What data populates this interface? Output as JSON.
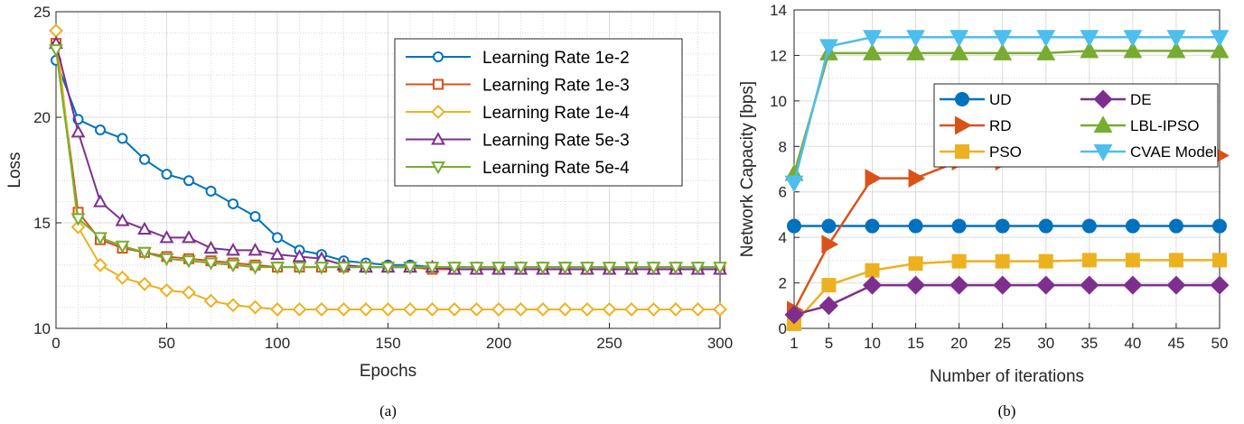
{
  "chart_data": [
    {
      "type": "line",
      "caption": "(a)",
      "xlabel": "Epochs",
      "ylabel": "Loss",
      "xlim": [
        0,
        300
      ],
      "ylim": [
        10,
        25
      ],
      "xticks": [
        0,
        50,
        100,
        150,
        200,
        250,
        300
      ],
      "yticks": [
        10,
        15,
        20,
        25
      ],
      "grid": true,
      "legend_position": "top-right",
      "x": [
        0,
        10,
        20,
        30,
        40,
        50,
        60,
        70,
        80,
        90,
        100,
        110,
        120,
        130,
        140,
        150,
        160,
        170,
        180,
        190,
        200,
        210,
        220,
        230,
        240,
        250,
        260,
        270,
        280,
        290,
        300
      ],
      "series": [
        {
          "name": "Learning Rate 1e-2",
          "color": "#0072BD",
          "marker": "circle",
          "values": [
            22.7,
            19.9,
            19.4,
            19.0,
            18.0,
            17.3,
            17.0,
            16.5,
            15.9,
            15.3,
            14.3,
            13.7,
            13.5,
            13.2,
            13.1,
            13.0,
            13.0,
            12.9,
            12.9,
            12.9,
            12.9,
            12.9,
            12.9,
            12.9,
            12.9,
            12.9,
            12.9,
            12.9,
            12.9,
            12.9,
            12.9
          ]
        },
        {
          "name": "Learning Rate 1e-3",
          "color": "#D95319",
          "marker": "square",
          "values": [
            23.5,
            15.5,
            14.2,
            13.8,
            13.6,
            13.4,
            13.3,
            13.2,
            13.1,
            13.0,
            12.9,
            12.9,
            12.9,
            12.9,
            12.9,
            12.9,
            12.9,
            12.8,
            12.8,
            12.8,
            12.8,
            12.8,
            12.8,
            12.8,
            12.8,
            12.8,
            12.8,
            12.8,
            12.8,
            12.8,
            12.8
          ]
        },
        {
          "name": "Learning Rate 1e-4",
          "color": "#EDB120",
          "marker": "diamond",
          "values": [
            24.1,
            14.8,
            13.0,
            12.4,
            12.1,
            11.8,
            11.7,
            11.3,
            11.1,
            11.0,
            10.9,
            10.9,
            10.9,
            10.9,
            10.9,
            10.9,
            10.9,
            10.9,
            10.9,
            10.9,
            10.9,
            10.9,
            10.9,
            10.9,
            10.9,
            10.9,
            10.9,
            10.9,
            10.9,
            10.9,
            10.9
          ]
        },
        {
          "name": "Learning Rate 5e-3",
          "color": "#7E2F8E",
          "marker": "triangle-up",
          "values": [
            23.5,
            19.3,
            16.0,
            15.1,
            14.7,
            14.3,
            14.3,
            13.8,
            13.7,
            13.7,
            13.5,
            13.4,
            13.3,
            13.0,
            12.9,
            12.9,
            12.9,
            12.9,
            12.8,
            12.8,
            12.8,
            12.8,
            12.8,
            12.8,
            12.8,
            12.8,
            12.8,
            12.8,
            12.8,
            12.8,
            12.8
          ]
        },
        {
          "name": "Learning Rate 5e-4",
          "color": "#77AC30",
          "marker": "triangle-down",
          "values": [
            23.2,
            15.2,
            14.3,
            13.9,
            13.6,
            13.3,
            13.2,
            13.1,
            13.0,
            12.9,
            12.9,
            12.9,
            12.9,
            12.9,
            12.9,
            12.9,
            12.9,
            12.9,
            12.9,
            12.9,
            12.9,
            12.9,
            12.9,
            12.9,
            12.9,
            12.9,
            12.9,
            12.9,
            12.9,
            12.9,
            12.9
          ]
        }
      ]
    },
    {
      "type": "line",
      "caption": "(b)",
      "xlabel": "Number of iterations",
      "ylabel": "Network Capacity [bps]",
      "xlim": [
        1,
        50
      ],
      "ylim": [
        0,
        14
      ],
      "xticks": [
        1,
        5,
        10,
        15,
        20,
        25,
        30,
        35,
        40,
        45,
        50
      ],
      "yticks": [
        0,
        2,
        4,
        6,
        8,
        10,
        12,
        14
      ],
      "grid": true,
      "legend_position": "top-right",
      "legend_columns": 2,
      "x": [
        1,
        5,
        10,
        15,
        20,
        25,
        30,
        35,
        40,
        45,
        50
      ],
      "series": [
        {
          "name": "UD",
          "color": "#0072BD",
          "marker": "circle",
          "values": [
            4.5,
            4.5,
            4.5,
            4.5,
            4.5,
            4.5,
            4.5,
            4.5,
            4.5,
            4.5,
            4.5
          ]
        },
        {
          "name": "DE",
          "color": "#7E2F8E",
          "marker": "diamond",
          "values": [
            0.6,
            1.0,
            1.9,
            1.9,
            1.9,
            1.9,
            1.9,
            1.9,
            1.9,
            1.9,
            1.9
          ]
        },
        {
          "name": "RD",
          "color": "#D95319",
          "marker": "triangle-right",
          "values": [
            0.8,
            3.7,
            6.6,
            6.6,
            7.35,
            7.35,
            7.6,
            7.6,
            7.6,
            7.6,
            7.6
          ]
        },
        {
          "name": "LBL-IPSO",
          "color": "#77AC30",
          "marker": "triangle-up",
          "values": [
            6.8,
            12.1,
            12.1,
            12.1,
            12.1,
            12.1,
            12.1,
            12.2,
            12.2,
            12.2,
            12.2
          ]
        },
        {
          "name": "PSO",
          "color": "#EDB120",
          "marker": "square",
          "values": [
            0.2,
            1.9,
            2.55,
            2.85,
            2.95,
            2.95,
            2.95,
            3.0,
            3.0,
            3.0,
            3.0
          ]
        },
        {
          "name": "CVAE Model",
          "color": "#4DBEEE",
          "marker": "triangle-down",
          "values": [
            6.4,
            12.4,
            12.8,
            12.8,
            12.8,
            12.8,
            12.8,
            12.8,
            12.8,
            12.8,
            12.8
          ]
        }
      ]
    }
  ]
}
